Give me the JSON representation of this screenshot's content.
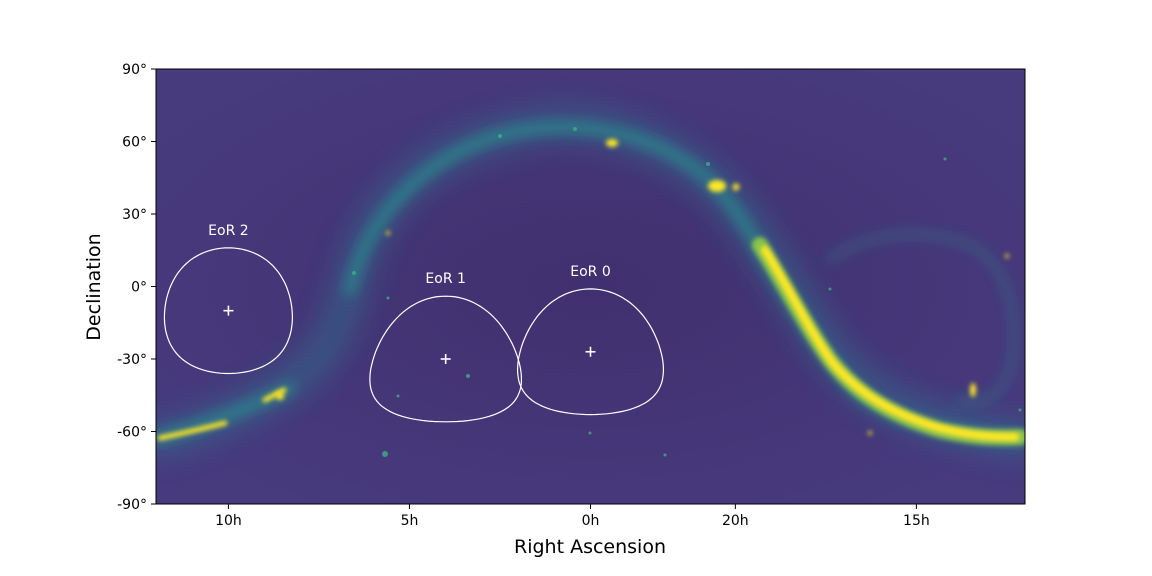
{
  "chart_data": {
    "type": "heatmap",
    "title": "",
    "xlabel": "Right Ascension",
    "ylabel": "Declination",
    "x_axis": {
      "inverted": true,
      "range_hours": [
        12.0,
        -12.0
      ],
      "ticks": [
        {
          "value": 10,
          "label": "10h"
        },
        {
          "value": 5,
          "label": "5h"
        },
        {
          "value": 0,
          "label": "0h"
        },
        {
          "value": -4,
          "label": "20h"
        },
        {
          "value": -9,
          "label": "15h"
        }
      ]
    },
    "y_axis": {
      "range_deg": [
        -90,
        90
      ],
      "ticks": [
        {
          "value": 90,
          "label": "90°"
        },
        {
          "value": 60,
          "label": "60°"
        },
        {
          "value": 30,
          "label": "30°"
        },
        {
          "value": 0,
          "label": "0°"
        },
        {
          "value": -30,
          "label": "-30°"
        },
        {
          "value": -60,
          "label": "-60°"
        },
        {
          "value": -90,
          "label": "-90°"
        }
      ]
    },
    "colormap": "viridis",
    "fields": [
      {
        "name": "EoR 2",
        "ra_hours": 10.0,
        "dec_deg": -10,
        "radius_deg": 26
      },
      {
        "name": "EoR 1",
        "ra_hours": 4.0,
        "dec_deg": -30,
        "radius_deg": 26
      },
      {
        "name": "EoR 0",
        "ra_hours": 0.0,
        "dec_deg": -27,
        "radius_deg": 26
      }
    ],
    "grid": false,
    "colors": {
      "background": "#45347a",
      "band_mid": "#2b8f8d",
      "band_bright": "#fde725",
      "field_outline": "#ffffff"
    }
  }
}
